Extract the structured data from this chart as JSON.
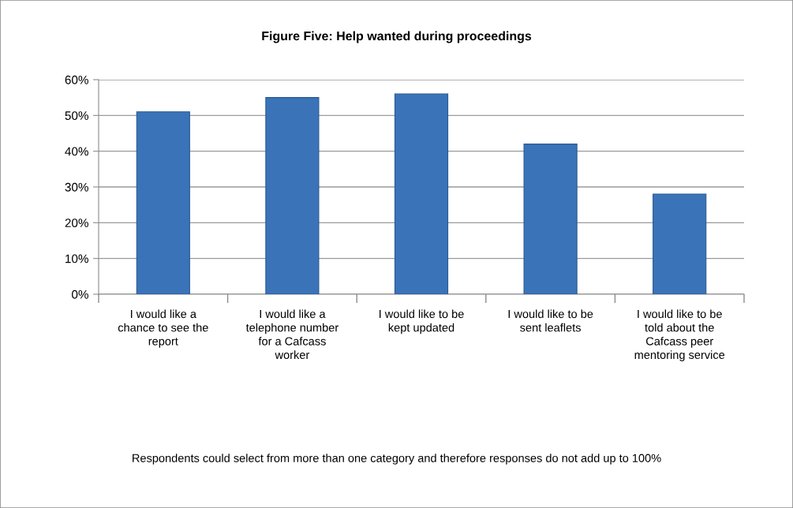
{
  "chart_data": {
    "type": "bar",
    "title": "Figure Five: Help wanted during proceedings",
    "categories": [
      "I would like a\nchance to see the\nreport",
      "I would like a\ntelephone number\nfor a Cafcass\nworker",
      "I would like to be\nkept updated",
      "I would like to be\nsent leaflets",
      "I would like to be\ntold about the\nCafcass peer\nmentoring service"
    ],
    "values": [
      51,
      55,
      56,
      42,
      28
    ],
    "color": "#3a73b8",
    "ylim": [
      0,
      60
    ],
    "yticks": [
      {
        "value": 0,
        "label": "0%"
      },
      {
        "value": 10,
        "label": "10%"
      },
      {
        "value": 20,
        "label": "20%"
      },
      {
        "value": 30,
        "label": "30%"
      },
      {
        "value": 40,
        "label": "40%"
      },
      {
        "value": 50,
        "label": "50%"
      },
      {
        "value": 60,
        "label": "60%"
      }
    ],
    "grid": "y",
    "legend": false,
    "annotations": [
      "Respondents could select from more than one category and therefore responses do not add up to 100%"
    ]
  }
}
